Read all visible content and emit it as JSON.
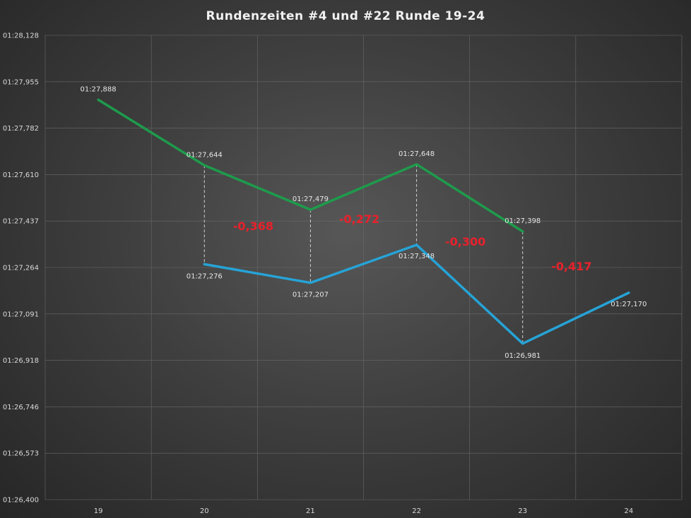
{
  "chart_data": {
    "type": "line",
    "title": "Rundenzeiten  #4  und  #22  Runde  19-24",
    "x": [
      "19",
      "20",
      "21",
      "22",
      "23",
      "24"
    ],
    "y_tick_labels": [
      "01:26,400",
      "01:26,573",
      "01:26,746",
      "01:26,918",
      "01:27,091",
      "01:27,264",
      "01:27,437",
      "01:27,610",
      "01:27,782",
      "01:27,955",
      "01:28,128"
    ],
    "ylim": [
      86.4,
      88.128
    ],
    "grid": true,
    "series": [
      {
        "color": "#1e9b4c",
        "values": [
          87.888,
          87.644,
          87.479,
          87.648,
          87.398,
          null
        ],
        "labels": [
          "01:27,888",
          "01:27,644",
          "01:27,479",
          "01:27,648",
          "01:27,398",
          null
        ]
      },
      {
        "color": "#26a3d6",
        "values": [
          null,
          87.276,
          87.207,
          87.348,
          86.981,
          87.17
        ],
        "labels": [
          null,
          "01:27,276",
          "01:27,207",
          "01:27,348",
          "01:26,981",
          "01:27,170"
        ]
      }
    ],
    "differences": [
      {
        "between": [
          "20",
          "21"
        ],
        "label": "-0,368"
      },
      {
        "between": [
          "21",
          "22"
        ],
        "label": "-0,272"
      },
      {
        "between": [
          "22",
          "23"
        ],
        "label": "-0,300"
      },
      {
        "between": [
          "23",
          "24"
        ],
        "label": "-0,417"
      }
    ],
    "difference_color": "#e8212b"
  }
}
